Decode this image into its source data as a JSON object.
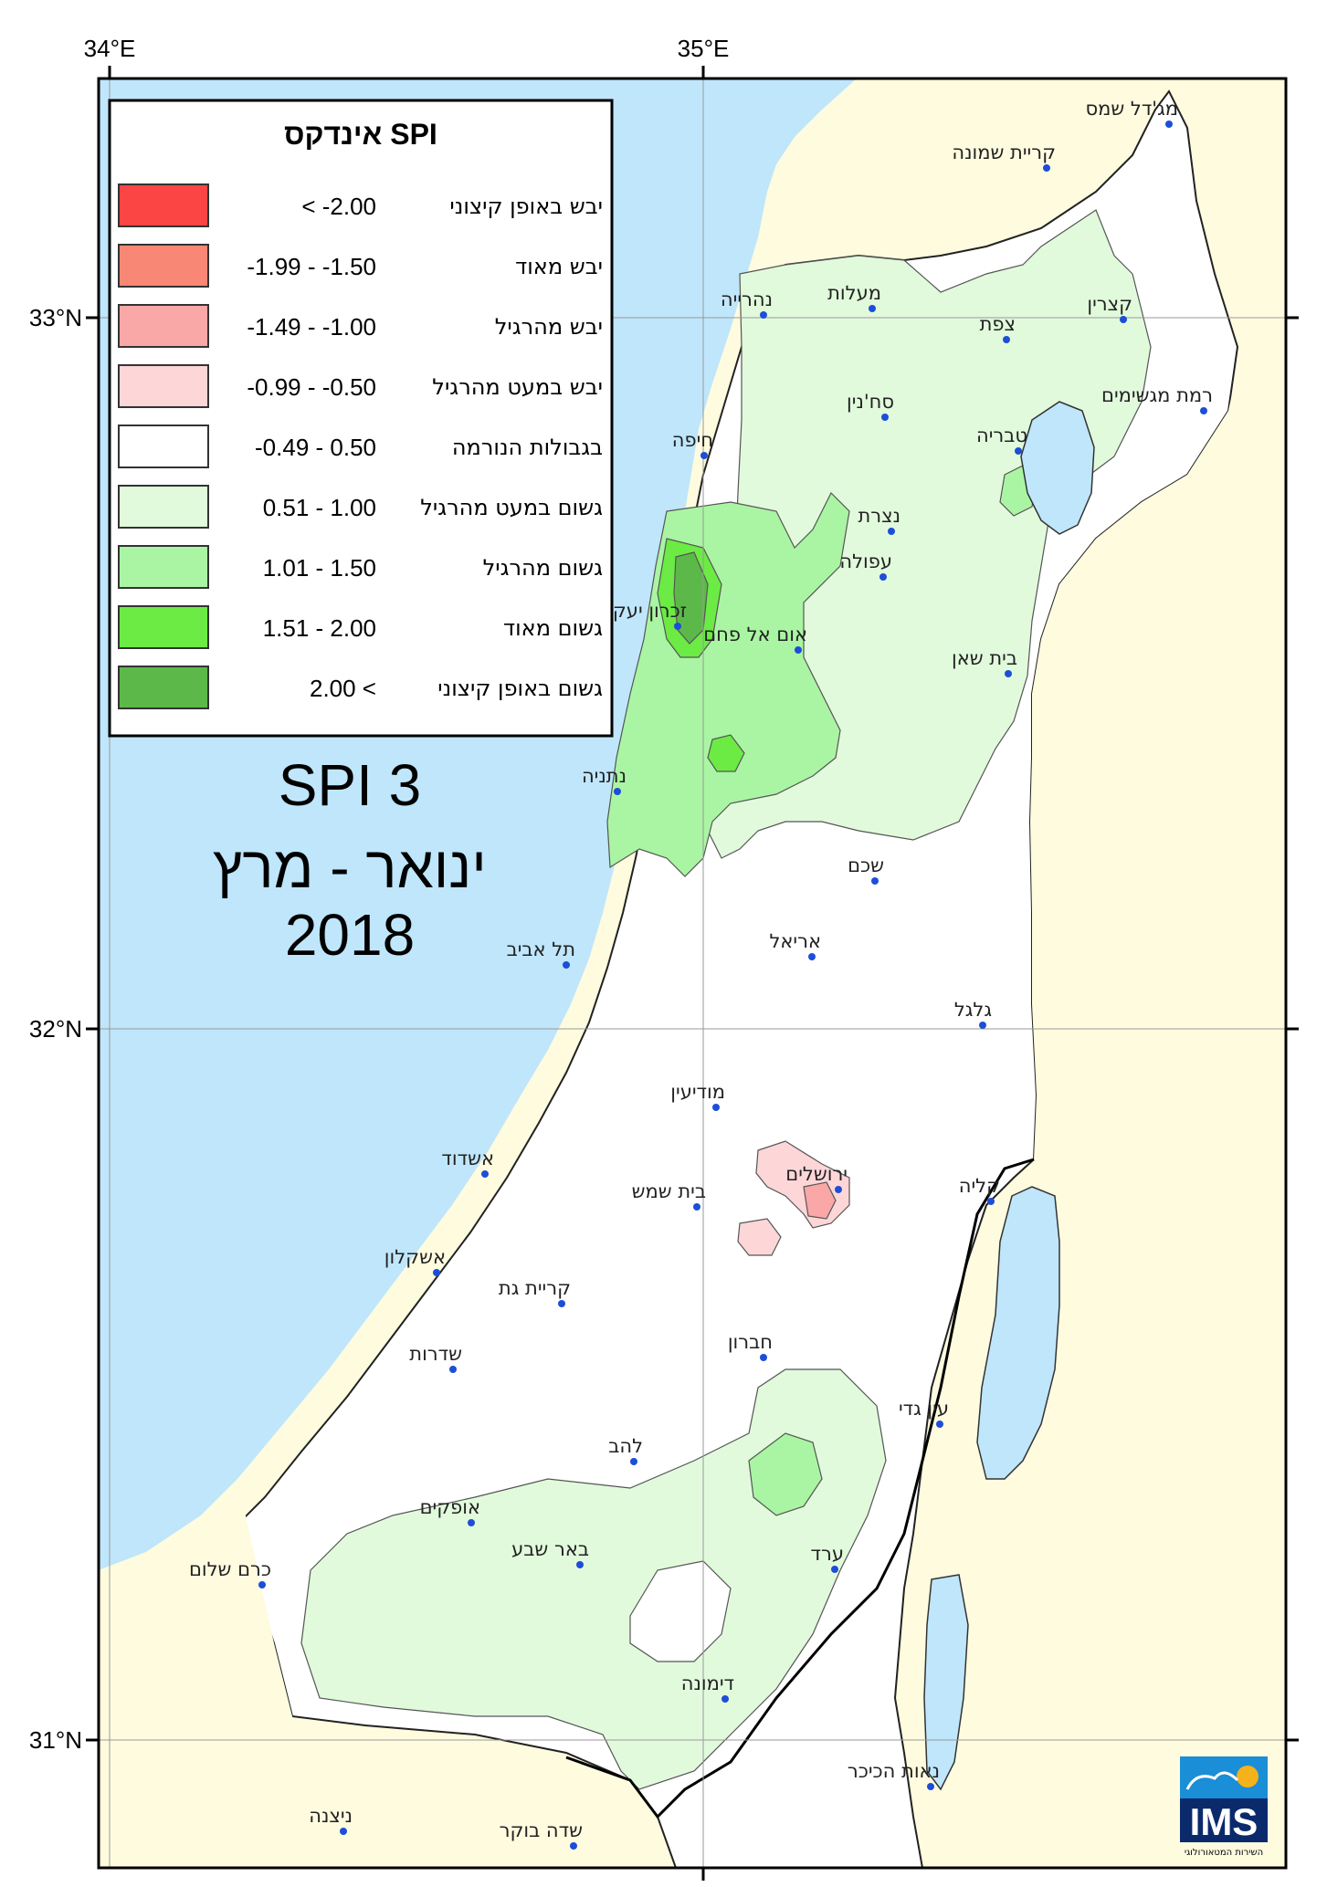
{
  "coords": {
    "top": [
      "34°E",
      "35°E"
    ],
    "left": [
      "33°N",
      "32°N",
      "31°N"
    ]
  },
  "legend": {
    "title": "אינדקס SPI",
    "items": [
      {
        "label": "יבש באופן קיצוני",
        "range": "< -2.00",
        "color": "#fb4444"
      },
      {
        "label": "יבש מאוד",
        "range": "-1.99 - -1.50",
        "color": "#f98776"
      },
      {
        "label": "יבש מהרגיל",
        "range": "-1.49 - -1.00",
        "color": "#f9a7a7"
      },
      {
        "label": "יבש במעט מהרגיל",
        "range": "-0.99 - -0.50",
        "color": "#fdd6d8"
      },
      {
        "label": "בגבולות הנורמה",
        "range": "-0.49 - 0.50",
        "color": "#ffffff"
      },
      {
        "label": "גשום במעט מהרגיל",
        "range": "0.51 - 1.00",
        "color": "#e1fadc"
      },
      {
        "label": "גשום מהרגיל",
        "range": "1.01 - 1.50",
        "color": "#aaf5a3"
      },
      {
        "label": "גשום מאוד",
        "range": "1.51 - 2.00",
        "color": "#6beb44"
      },
      {
        "label": "גשום באופן קיצוני",
        "range": "2.00 <",
        "color": "#5cb949"
      }
    ]
  },
  "map_title": {
    "line1": "SPI 3",
    "line2": "ינואר - מרץ",
    "line3": "2018"
  },
  "cities": [
    {
      "name": "מג'דל שמס"
    },
    {
      "name": "קריית שמונה"
    },
    {
      "name": "נהרייה"
    },
    {
      "name": "מעלות"
    },
    {
      "name": "קצרין"
    },
    {
      "name": "צפת"
    },
    {
      "name": "סח'נין"
    },
    {
      "name": "רמת מגשימים"
    },
    {
      "name": "חיפה"
    },
    {
      "name": "טבריה"
    },
    {
      "name": "נצרת"
    },
    {
      "name": "עפולה"
    },
    {
      "name": "זכרון יעקב"
    },
    {
      "name": "אום אל פחם"
    },
    {
      "name": "בית שאן"
    },
    {
      "name": "נתניה"
    },
    {
      "name": "שכם"
    },
    {
      "name": "אריאל"
    },
    {
      "name": "תל אביב"
    },
    {
      "name": "גלגל"
    },
    {
      "name": "מודיעין"
    },
    {
      "name": "אשדוד"
    },
    {
      "name": "ירושלים"
    },
    {
      "name": "בית שמש"
    },
    {
      "name": "קליה"
    },
    {
      "name": "אשקלון"
    },
    {
      "name": "קריית גת"
    },
    {
      "name": "שדרות"
    },
    {
      "name": "חברון"
    },
    {
      "name": "עין גדי"
    },
    {
      "name": "להב"
    },
    {
      "name": "אופקים"
    },
    {
      "name": "באר שבע"
    },
    {
      "name": "ערד"
    },
    {
      "name": "כרם שלום"
    },
    {
      "name": "דימונה"
    },
    {
      "name": "נאות הכיכר"
    },
    {
      "name": "ניצנה"
    },
    {
      "name": "שדה בוקר"
    }
  ],
  "logo": {
    "text": "IMS",
    "subtitle": "השירות המטאורולוגי"
  },
  "colors": {
    "sea": "#bfe6fb",
    "land_outside": "#fefbdf",
    "normal": "#ffffff"
  }
}
